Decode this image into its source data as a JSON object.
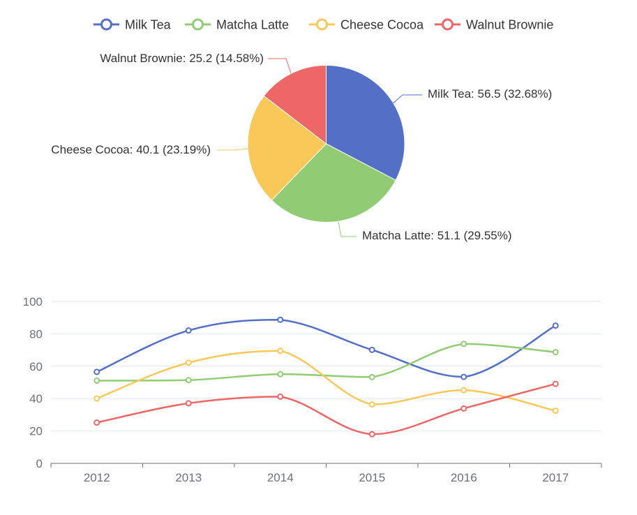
{
  "chart_data": {
    "type": "line",
    "categories": [
      "2012",
      "2013",
      "2014",
      "2015",
      "2016",
      "2017"
    ],
    "ylim": [
      0,
      100
    ],
    "yticks": [
      0,
      20,
      40,
      60,
      80,
      100
    ],
    "grid": true,
    "legend_position": "top-center",
    "smooth": true,
    "series": [
      {
        "name": "Milk Tea",
        "color": "#5470c6",
        "values": [
          56.5,
          82.1,
          88.7,
          70.1,
          53.4,
          85.1
        ]
      },
      {
        "name": "Matcha Latte",
        "color": "#91cc75",
        "values": [
          51.1,
          51.4,
          55.1,
          53.3,
          73.8,
          68.7
        ]
      },
      {
        "name": "Cheese Cocoa",
        "color": "#fac858",
        "values": [
          40.1,
          62.2,
          69.5,
          36.4,
          45.2,
          32.5
        ]
      },
      {
        "name": "Walnut Brownie",
        "color": "#ee6666",
        "values": [
          25.2,
          37.1,
          41.2,
          18.0,
          33.9,
          49.1
        ]
      }
    ],
    "pie": {
      "type": "pie",
      "category": "2012",
      "slices": [
        {
          "name": "Milk Tea",
          "value": 56.5,
          "percent": "32.68%",
          "color": "#5470c6",
          "label": "Milk Tea: 56.5 (32.68%)"
        },
        {
          "name": "Matcha Latte",
          "value": 51.1,
          "percent": "29.55%",
          "color": "#91cc75",
          "label": "Matcha Latte: 51.1 (29.55%)"
        },
        {
          "name": "Cheese Cocoa",
          "value": 40.1,
          "percent": "23.19%",
          "color": "#fac858",
          "label": "Cheese Cocoa: 40.1 (23.19%)"
        },
        {
          "name": "Walnut Brownie",
          "value": 25.2,
          "percent": "14.58%",
          "color": "#ee6666",
          "label": "Walnut Brownie: 25.2 (14.58%)"
        }
      ]
    }
  }
}
